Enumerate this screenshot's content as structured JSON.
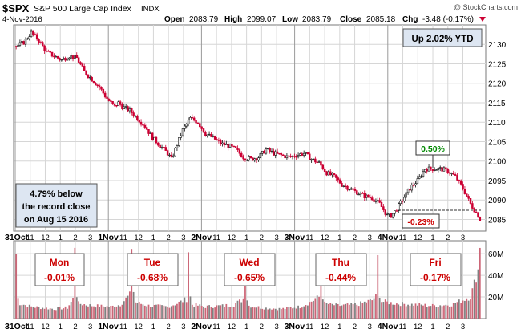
{
  "header": {
    "symbol": "$SPX",
    "name": "S&P 500 Large Cap Index",
    "exchange": "INDX",
    "date": "4-Nov-2016",
    "watermark": "@ StockCharts.com",
    "open_label": "Open",
    "open": "2083.79",
    "high_label": "High",
    "high": "2099.07",
    "low_label": "Low",
    "low": "2083.79",
    "close_label": "Close",
    "close": "2085.18",
    "chg_label": "Chg",
    "chg": "-3.48 (-0.17%)"
  },
  "annotations": {
    "ytd": "Up 2.02% YTD",
    "record_line1": "4.79% below",
    "record_line2": "the record close",
    "record_line3": "on Aug 15 2016",
    "gain_label": "0.50%",
    "loss_label": "-0.23%"
  },
  "days": [
    {
      "day": "Mon",
      "pct": "-0.01%"
    },
    {
      "day": "Tue",
      "pct": "-0.68%"
    },
    {
      "day": "Wed",
      "pct": "-0.65%"
    },
    {
      "day": "Thu",
      "pct": "-0.44%"
    },
    {
      "day": "Fri",
      "pct": "-0.17%"
    }
  ],
  "colors": {
    "up": "#111111",
    "down": "#cc0033",
    "vol_up": "#808080",
    "vol_down": "#cc6677",
    "pct_text": "#cc0000",
    "gain_text": "#008800",
    "box_fill": "#dde6f2",
    "grid": "#d6d6d6"
  },
  "chart_data": {
    "type": "candlestick",
    "price_axis": {
      "ylim": [
        2082,
        2135
      ],
      "ticks": [
        2085,
        2090,
        2095,
        2100,
        2105,
        2110,
        2115,
        2120,
        2125,
        2130
      ]
    },
    "volume_axis": {
      "ylim": [
        0,
        72
      ],
      "ticks": [
        "20M",
        "40M",
        "60M"
      ],
      "tick_values": [
        20,
        40,
        60
      ]
    },
    "x_axis": {
      "tick_labels": [
        "31Oct",
        "11",
        "12",
        "1",
        "2",
        "3",
        "1Nov",
        "11",
        "12",
        "1",
        "2",
        "3",
        "2Nov",
        "11",
        "12",
        "1",
        "2",
        "3",
        "3Nov",
        "11",
        "12",
        "1",
        "2",
        "3",
        "4Nov",
        "11",
        "12",
        "1",
        "2",
        "3"
      ],
      "day_starts": [
        "31Oct",
        "1Nov",
        "2Nov",
        "3Nov",
        "4Nov"
      ]
    },
    "price_anchors": [
      [
        0,
        2129.5
      ],
      [
        4,
        2130.5
      ],
      [
        8,
        2133
      ],
      [
        12,
        2131
      ],
      [
        16,
        2128
      ],
      [
        20,
        2127
      ],
      [
        24,
        2126
      ],
      [
        28,
        2127
      ],
      [
        32,
        2126.5
      ],
      [
        36,
        2123
      ],
      [
        40,
        2121
      ],
      [
        44,
        2119
      ],
      [
        48,
        2116
      ],
      [
        52,
        2114
      ],
      [
        54,
        2115
      ],
      [
        56,
        2114
      ],
      [
        60,
        2113
      ],
      [
        64,
        2111
      ],
      [
        68,
        2109
      ],
      [
        72,
        2106
      ],
      [
        76,
        2104
      ],
      [
        80,
        2102
      ],
      [
        82,
        2100.5
      ],
      [
        84,
        2103
      ],
      [
        88,
        2108
      ],
      [
        92,
        2111
      ],
      [
        96,
        2110
      ],
      [
        100,
        2107
      ],
      [
        104,
        2106
      ],
      [
        108,
        2104.5
      ],
      [
        112,
        2104
      ],
      [
        116,
        2103
      ],
      [
        120,
        2101
      ],
      [
        124,
        2100.5
      ],
      [
        128,
        2101
      ],
      [
        132,
        2103
      ],
      [
        136,
        2102
      ],
      [
        140,
        2101.5
      ],
      [
        144,
        2101
      ],
      [
        148,
        2101.5
      ],
      [
        152,
        2102
      ],
      [
        156,
        2100.5
      ],
      [
        160,
        2099.5
      ],
      [
        164,
        2097
      ],
      [
        168,
        2096
      ],
      [
        172,
        2094
      ],
      [
        176,
        2093
      ],
      [
        180,
        2092
      ],
      [
        184,
        2091
      ],
      [
        188,
        2090.5
      ],
      [
        192,
        2089
      ],
      [
        196,
        2086
      ],
      [
        198,
        2086
      ],
      [
        200,
        2087
      ],
      [
        204,
        2090
      ],
      [
        208,
        2093
      ],
      [
        212,
        2095
      ],
      [
        216,
        2098
      ],
      [
        220,
        2098
      ],
      [
        224,
        2098
      ],
      [
        228,
        2097.5
      ],
      [
        232,
        2096
      ],
      [
        236,
        2093
      ],
      [
        240,
        2089
      ],
      [
        244,
        2086
      ],
      [
        245,
        2085
      ]
    ],
    "volume_anchors": [
      [
        0,
        60
      ],
      [
        1,
        18
      ],
      [
        2,
        14
      ],
      [
        8,
        11
      ],
      [
        20,
        9
      ],
      [
        27,
        10
      ],
      [
        30,
        18
      ],
      [
        31,
        70
      ],
      [
        32,
        22
      ],
      [
        33,
        14
      ],
      [
        40,
        12
      ],
      [
        50,
        11
      ],
      [
        55,
        13
      ],
      [
        60,
        22
      ],
      [
        61,
        68
      ],
      [
        62,
        25
      ],
      [
        63,
        15
      ],
      [
        70,
        12
      ],
      [
        80,
        11
      ],
      [
        85,
        14
      ],
      [
        90,
        18
      ],
      [
        91,
        64
      ],
      [
        92,
        20
      ],
      [
        93,
        13
      ],
      [
        100,
        11
      ],
      [
        110,
        12
      ],
      [
        115,
        13
      ],
      [
        120,
        18
      ],
      [
        121,
        60
      ],
      [
        122,
        18
      ],
      [
        123,
        12
      ],
      [
        130,
        10
      ],
      [
        140,
        9
      ],
      [
        150,
        11
      ],
      [
        155,
        15
      ],
      [
        160,
        20
      ],
      [
        161,
        62
      ],
      [
        162,
        20
      ],
      [
        163,
        14
      ],
      [
        170,
        12
      ],
      [
        180,
        13
      ],
      [
        188,
        17
      ],
      [
        190,
        20
      ],
      [
        191,
        55
      ],
      [
        192,
        22
      ],
      [
        193,
        16
      ],
      [
        200,
        14
      ],
      [
        210,
        13
      ],
      [
        220,
        12
      ],
      [
        230,
        13
      ],
      [
        240,
        20
      ],
      [
        244,
        45
      ],
      [
        245,
        70
      ]
    ]
  }
}
